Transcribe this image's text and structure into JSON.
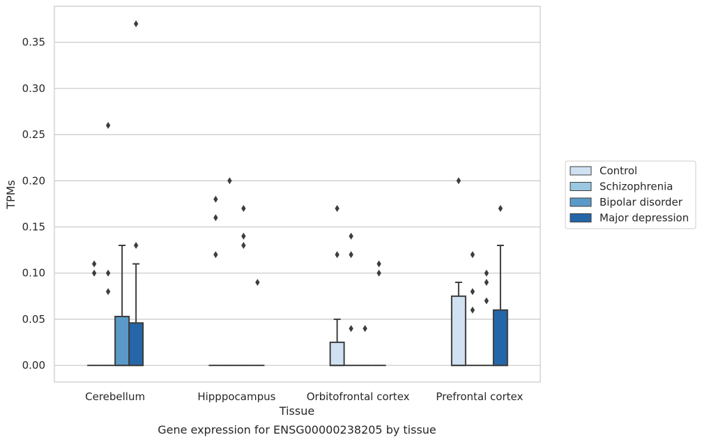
{
  "chart_data": {
    "type": "box",
    "xlabel": "Tissue",
    "ylabel": "TPMs",
    "caption": "Gene expression for ENSG00000238205 by tissue",
    "ylim": [
      -0.018,
      0.389
    ],
    "yticks": [
      0.0,
      0.05,
      0.1,
      0.15,
      0.2,
      0.25,
      0.3,
      0.35
    ],
    "ytick_labels": [
      "0.00",
      "0.05",
      "0.10",
      "0.15",
      "0.20",
      "0.25",
      "0.30",
      "0.35"
    ],
    "grid": "horizontal",
    "legend_position": "right",
    "categories": [
      "Cerebellum",
      "Hipppocampus",
      "Orbitofrontal cortex",
      "Prefrontal cortex"
    ],
    "series": [
      {
        "name": "Control",
        "color": "#d0e1f2",
        "boxes": [
          {
            "q1": 0,
            "median": 0,
            "q3": 0,
            "whisker_low": 0,
            "whisker_high": 0,
            "outliers": [
              0.1,
              0.11
            ]
          },
          {
            "q1": 0,
            "median": 0,
            "q3": 0,
            "whisker_low": 0,
            "whisker_high": 0,
            "outliers": [
              0.12,
              0.16,
              0.18
            ]
          },
          {
            "q1": 0,
            "median": 0,
            "q3": 0.025,
            "whisker_low": 0,
            "whisker_high": 0.05,
            "outliers": [
              0.12,
              0.17
            ]
          },
          {
            "q1": 0,
            "median": 0,
            "q3": 0.075,
            "whisker_low": 0,
            "whisker_high": 0.09,
            "outliers": [
              0.2
            ]
          }
        ]
      },
      {
        "name": "Schizophrenia",
        "color": "#9ac8e0",
        "boxes": [
          {
            "q1": 0,
            "median": 0,
            "q3": 0,
            "whisker_low": 0,
            "whisker_high": 0,
            "outliers": [
              0.08,
              0.1,
              0.26
            ]
          },
          {
            "q1": 0,
            "median": 0,
            "q3": 0,
            "whisker_low": 0,
            "whisker_high": 0,
            "outliers": [
              0.2
            ]
          },
          {
            "q1": 0,
            "median": 0,
            "q3": 0,
            "whisker_low": 0,
            "whisker_high": 0,
            "outliers": [
              0.04,
              0.12,
              0.14
            ]
          },
          {
            "q1": 0,
            "median": 0,
            "q3": 0,
            "whisker_low": 0,
            "whisker_high": 0,
            "outliers": [
              0.06,
              0.08,
              0.12
            ]
          }
        ]
      },
      {
        "name": "Bipolar disorder",
        "color": "#5a9ac8",
        "boxes": [
          {
            "q1": 0,
            "median": 0,
            "q3": 0.053,
            "whisker_low": 0,
            "whisker_high": 0.13,
            "outliers": []
          },
          {
            "q1": 0,
            "median": 0,
            "q3": 0,
            "whisker_low": 0,
            "whisker_high": 0,
            "outliers": [
              0.13,
              0.14,
              0.17
            ]
          },
          {
            "q1": 0,
            "median": 0,
            "q3": 0,
            "whisker_low": 0,
            "whisker_high": 0,
            "outliers": [
              0.04
            ]
          },
          {
            "q1": 0,
            "median": 0,
            "q3": 0,
            "whisker_low": 0,
            "whisker_high": 0,
            "outliers": [
              0.07,
              0.09,
              0.1
            ]
          }
        ]
      },
      {
        "name": "Major depression",
        "color": "#2566a8",
        "boxes": [
          {
            "q1": 0,
            "median": 0,
            "q3": 0.046,
            "whisker_low": 0,
            "whisker_high": 0.11,
            "outliers": [
              0.13,
              0.37
            ]
          },
          {
            "q1": 0,
            "median": 0,
            "q3": 0,
            "whisker_low": 0,
            "whisker_high": 0,
            "outliers": [
              0.09
            ]
          },
          {
            "q1": 0,
            "median": 0,
            "q3": 0,
            "whisker_low": 0,
            "whisker_high": 0,
            "outliers": [
              0.1,
              0.11
            ]
          },
          {
            "q1": 0,
            "median": 0,
            "q3": 0.06,
            "whisker_low": 0,
            "whisker_high": 0.13,
            "outliers": [
              0.17
            ]
          }
        ]
      }
    ]
  }
}
